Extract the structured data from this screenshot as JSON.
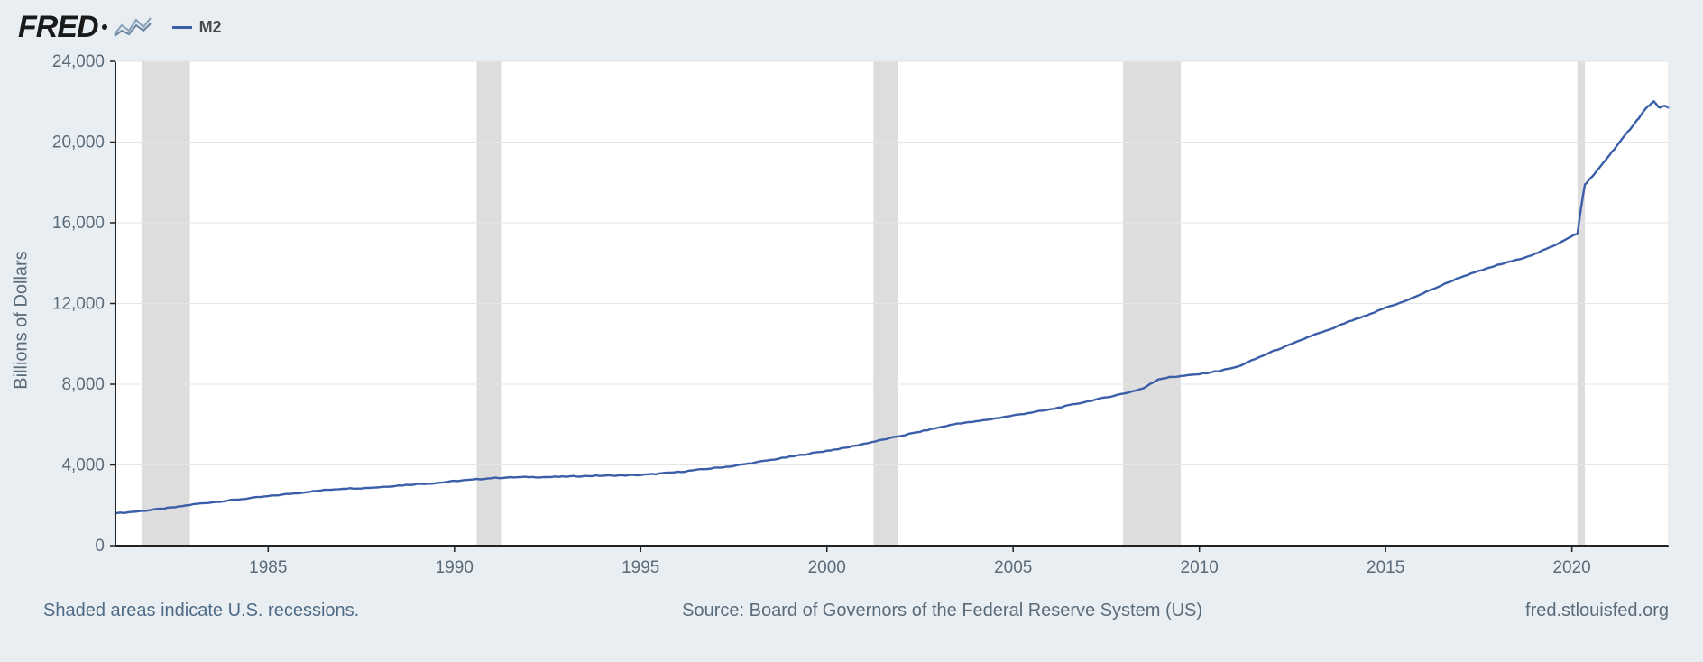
{
  "brand": {
    "name": "FRED",
    "spark_colors": [
      "#8aa3bb",
      "#6f8aa2"
    ]
  },
  "legend": {
    "series_color": "#3a5ea8",
    "label": "M2"
  },
  "chart": {
    "type": "line",
    "background_color": "#e9eef3",
    "plot_background": "#ffffff",
    "axis_line_color": "#222222",
    "grid_color": "#e5e5e5",
    "recession_fill": "#dddddd",
    "ylabel": "Billions of Dollars",
    "ylim": [
      0,
      24000
    ],
    "yticks": [
      0,
      4000,
      8000,
      12000,
      16000,
      20000,
      24000
    ],
    "ytick_labels": [
      "0",
      "4,000",
      "8,000",
      "12,000",
      "16,000",
      "20,000",
      "24,000"
    ],
    "xlim": [
      1980.9,
      2022.6
    ],
    "xticks": [
      1985,
      1990,
      1995,
      2000,
      2005,
      2010,
      2015,
      2020
    ],
    "xtick_labels": [
      "1985",
      "1990",
      "1995",
      "2000",
      "2005",
      "2010",
      "2015",
      "2020"
    ],
    "recessions": [
      [
        1981.6,
        1982.9
      ],
      [
        1990.6,
        1991.25
      ],
      [
        2001.25,
        2001.9
      ],
      [
        2007.95,
        2009.5
      ],
      [
        2020.15,
        2020.35
      ]
    ],
    "series": {
      "color": "#3a5ea8",
      "width": 2.4,
      "points": [
        [
          1980.9,
          1600
        ],
        [
          1981.5,
          1700
        ],
        [
          1982.0,
          1800
        ],
        [
          1982.5,
          1900
        ],
        [
          1983.0,
          2050
        ],
        [
          1983.5,
          2150
        ],
        [
          1984.0,
          2250
        ],
        [
          1984.5,
          2350
        ],
        [
          1985.0,
          2450
        ],
        [
          1985.5,
          2550
        ],
        [
          1986.0,
          2650
        ],
        [
          1986.5,
          2750
        ],
        [
          1987.0,
          2830
        ],
        [
          1987.5,
          2850
        ],
        [
          1988.0,
          2900
        ],
        [
          1988.5,
          2980
        ],
        [
          1989.0,
          3050
        ],
        [
          1989.5,
          3100
        ],
        [
          1990.0,
          3200
        ],
        [
          1990.5,
          3270
        ],
        [
          1991.0,
          3350
        ],
        [
          1991.5,
          3380
        ],
        [
          1992.0,
          3400
        ],
        [
          1992.5,
          3400
        ],
        [
          1993.0,
          3420
        ],
        [
          1993.5,
          3450
        ],
        [
          1994.0,
          3470
        ],
        [
          1994.5,
          3480
        ],
        [
          1995.0,
          3500
        ],
        [
          1995.5,
          3570
        ],
        [
          1996.0,
          3650
        ],
        [
          1996.5,
          3750
        ],
        [
          1997.0,
          3850
        ],
        [
          1997.5,
          3950
        ],
        [
          1998.0,
          4100
        ],
        [
          1998.5,
          4250
        ],
        [
          1999.0,
          4400
        ],
        [
          1999.5,
          4550
        ],
        [
          2000.0,
          4700
        ],
        [
          2000.5,
          4850
        ],
        [
          2001.0,
          5050
        ],
        [
          2001.5,
          5250
        ],
        [
          2002.0,
          5450
        ],
        [
          2002.5,
          5650
        ],
        [
          2003.0,
          5850
        ],
        [
          2003.5,
          6050
        ],
        [
          2004.0,
          6150
        ],
        [
          2004.5,
          6300
        ],
        [
          2005.0,
          6450
        ],
        [
          2005.5,
          6600
        ],
        [
          2006.0,
          6750
        ],
        [
          2006.5,
          6950
        ],
        [
          2007.0,
          7150
        ],
        [
          2007.5,
          7350
        ],
        [
          2008.0,
          7550
        ],
        [
          2008.5,
          7800
        ],
        [
          2008.9,
          8250
        ],
        [
          2009.2,
          8350
        ],
        [
          2009.5,
          8400
        ],
        [
          2010.0,
          8500
        ],
        [
          2010.5,
          8650
        ],
        [
          2011.0,
          8850
        ],
        [
          2011.5,
          9250
        ],
        [
          2012.0,
          9650
        ],
        [
          2012.5,
          10000
        ],
        [
          2013.0,
          10400
        ],
        [
          2013.5,
          10700
        ],
        [
          2014.0,
          11100
        ],
        [
          2014.5,
          11400
        ],
        [
          2015.0,
          11800
        ],
        [
          2015.5,
          12100
        ],
        [
          2016.0,
          12500
        ],
        [
          2016.5,
          12900
        ],
        [
          2017.0,
          13300
        ],
        [
          2017.5,
          13600
        ],
        [
          2018.0,
          13900
        ],
        [
          2018.5,
          14150
        ],
        [
          2019.0,
          14450
        ],
        [
          2019.5,
          14850
        ],
        [
          2020.0,
          15350
        ],
        [
          2020.15,
          15450
        ],
        [
          2020.25,
          16800
        ],
        [
          2020.35,
          17900
        ],
        [
          2020.6,
          18400
        ],
        [
          2020.9,
          19100
        ],
        [
          2021.2,
          19800
        ],
        [
          2021.5,
          20500
        ],
        [
          2021.8,
          21200
        ],
        [
          2022.0,
          21700
        ],
        [
          2022.2,
          22000
        ],
        [
          2022.35,
          21700
        ],
        [
          2022.5,
          21800
        ],
        [
          2022.6,
          21700
        ]
      ],
      "jitter": 45
    }
  },
  "footer": {
    "left": "Shaded areas indicate U.S. recessions.",
    "center": "Source: Board of Governors of the Federal Reserve System (US)",
    "right": "fred.stlouisfed.org"
  }
}
